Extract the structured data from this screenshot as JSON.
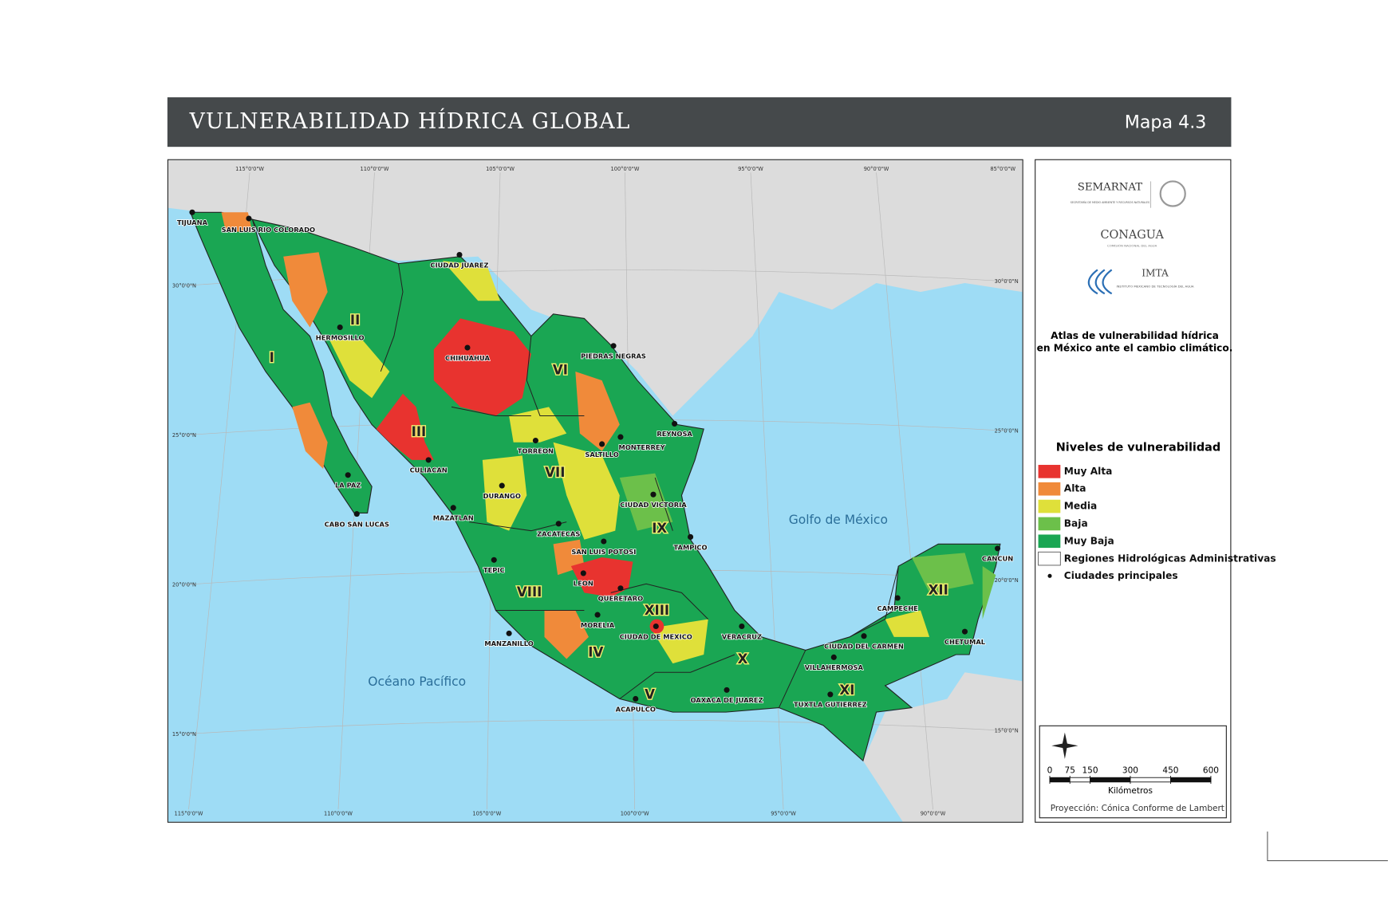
{
  "header": {
    "title": "VULNERABILIDAD HÍDRICA GLOBAL",
    "map_number": "Mapa 4.3"
  },
  "map": {
    "graticule": {
      "top": [
        "115°0'0\"W",
        "110°0'0\"W",
        "105°0'0\"W",
        "100°0'0\"W",
        "95°0'0\"W",
        "90°0'0\"W",
        "85°0'0\"W"
      ],
      "bottom": [
        "115°0'0\"W",
        "110°0'0\"W",
        "105°0'0\"W",
        "100°0'0\"W",
        "95°0'0\"W",
        "90°0'0\"W"
      ],
      "left": [
        "30°0'0\"N",
        "25°0'0\"N",
        "20°0'0\"N",
        "15°0'0\"N"
      ],
      "right": [
        "30°0'0\"N",
        "25°0'0\"N",
        "20°0'0\"N",
        "15°0'0\"N"
      ]
    },
    "cities": [
      "TIJUANA",
      "SAN LUIS RIO COLORADO",
      "CIUDAD JUAREZ",
      "HERMOSILLO",
      "CHIHUAHUA",
      "PIEDRAS NEGRAS",
      "REYNOSA",
      "TORREON",
      "SALTILLO",
      "MONTERREY",
      "CULIACAN",
      "LA PAZ",
      "DURANGO",
      "CIUDAD VICTORIA",
      "CABO SAN LUCAS",
      "MAZATLAN",
      "ZACATECAS",
      "SAN LUIS POTOSI",
      "TAMPICO",
      "CANCUN",
      "TEPIC",
      "LEON",
      "QUERETARO",
      "CAMPECHE",
      "MORELIA",
      "CIUDAD DE MEXICO",
      "VERACRUZ",
      "CHETUMAL",
      "MANZANILLO",
      "CIUDAD DEL CARMEN",
      "VILLAHERMOSA",
      "OAXACA DE JUAREZ",
      "TUXTLA GUTIERREZ",
      "ACAPULCO"
    ],
    "regions": [
      "I",
      "II",
      "III",
      "IV",
      "V",
      "VI",
      "VII",
      "VIII",
      "IX",
      "X",
      "XI",
      "XII",
      "XIII"
    ],
    "water_labels": [
      "Golfo de México",
      "Océano Pacífico"
    ]
  },
  "sidebar": {
    "logos": [
      {
        "name": "SEMARNAT",
        "subtitle": "SECRETARÍA DE MEDIO AMBIENTE Y RECURSOS NATURALES"
      },
      {
        "name": "CONAGUA",
        "subtitle": "COMISIÓN NACIONAL DEL AGUA"
      },
      {
        "name": "IMTA",
        "subtitle": "INSTITUTO MEXICANO DE TECNOLOGÍA DEL AGUA"
      }
    ],
    "atlas_title": [
      "Atlas de vulnerabilidad  hídrica",
      "en México ante el cambio climático."
    ],
    "legend": {
      "title": "Niveles de vulnerabilidad",
      "levels": [
        {
          "label": "Muy Alta",
          "color": "#e8332f"
        },
        {
          "label": "Alta",
          "color": "#f08a3a"
        },
        {
          "label": "Media",
          "color": "#dfe03a"
        },
        {
          "label": "Baja",
          "color": "#6cc04a"
        },
        {
          "label": "Muy Baja",
          "color": "#1aa653"
        }
      ],
      "boundary": "Regiones Hidrológicas Administrativas",
      "cities": "Ciudades principales"
    },
    "scale": {
      "ticks": [
        0,
        75,
        150,
        300,
        450,
        600
      ],
      "unit": "Kilómetros",
      "projection": "Proyección: Cónica Conforme de Lambert"
    }
  }
}
